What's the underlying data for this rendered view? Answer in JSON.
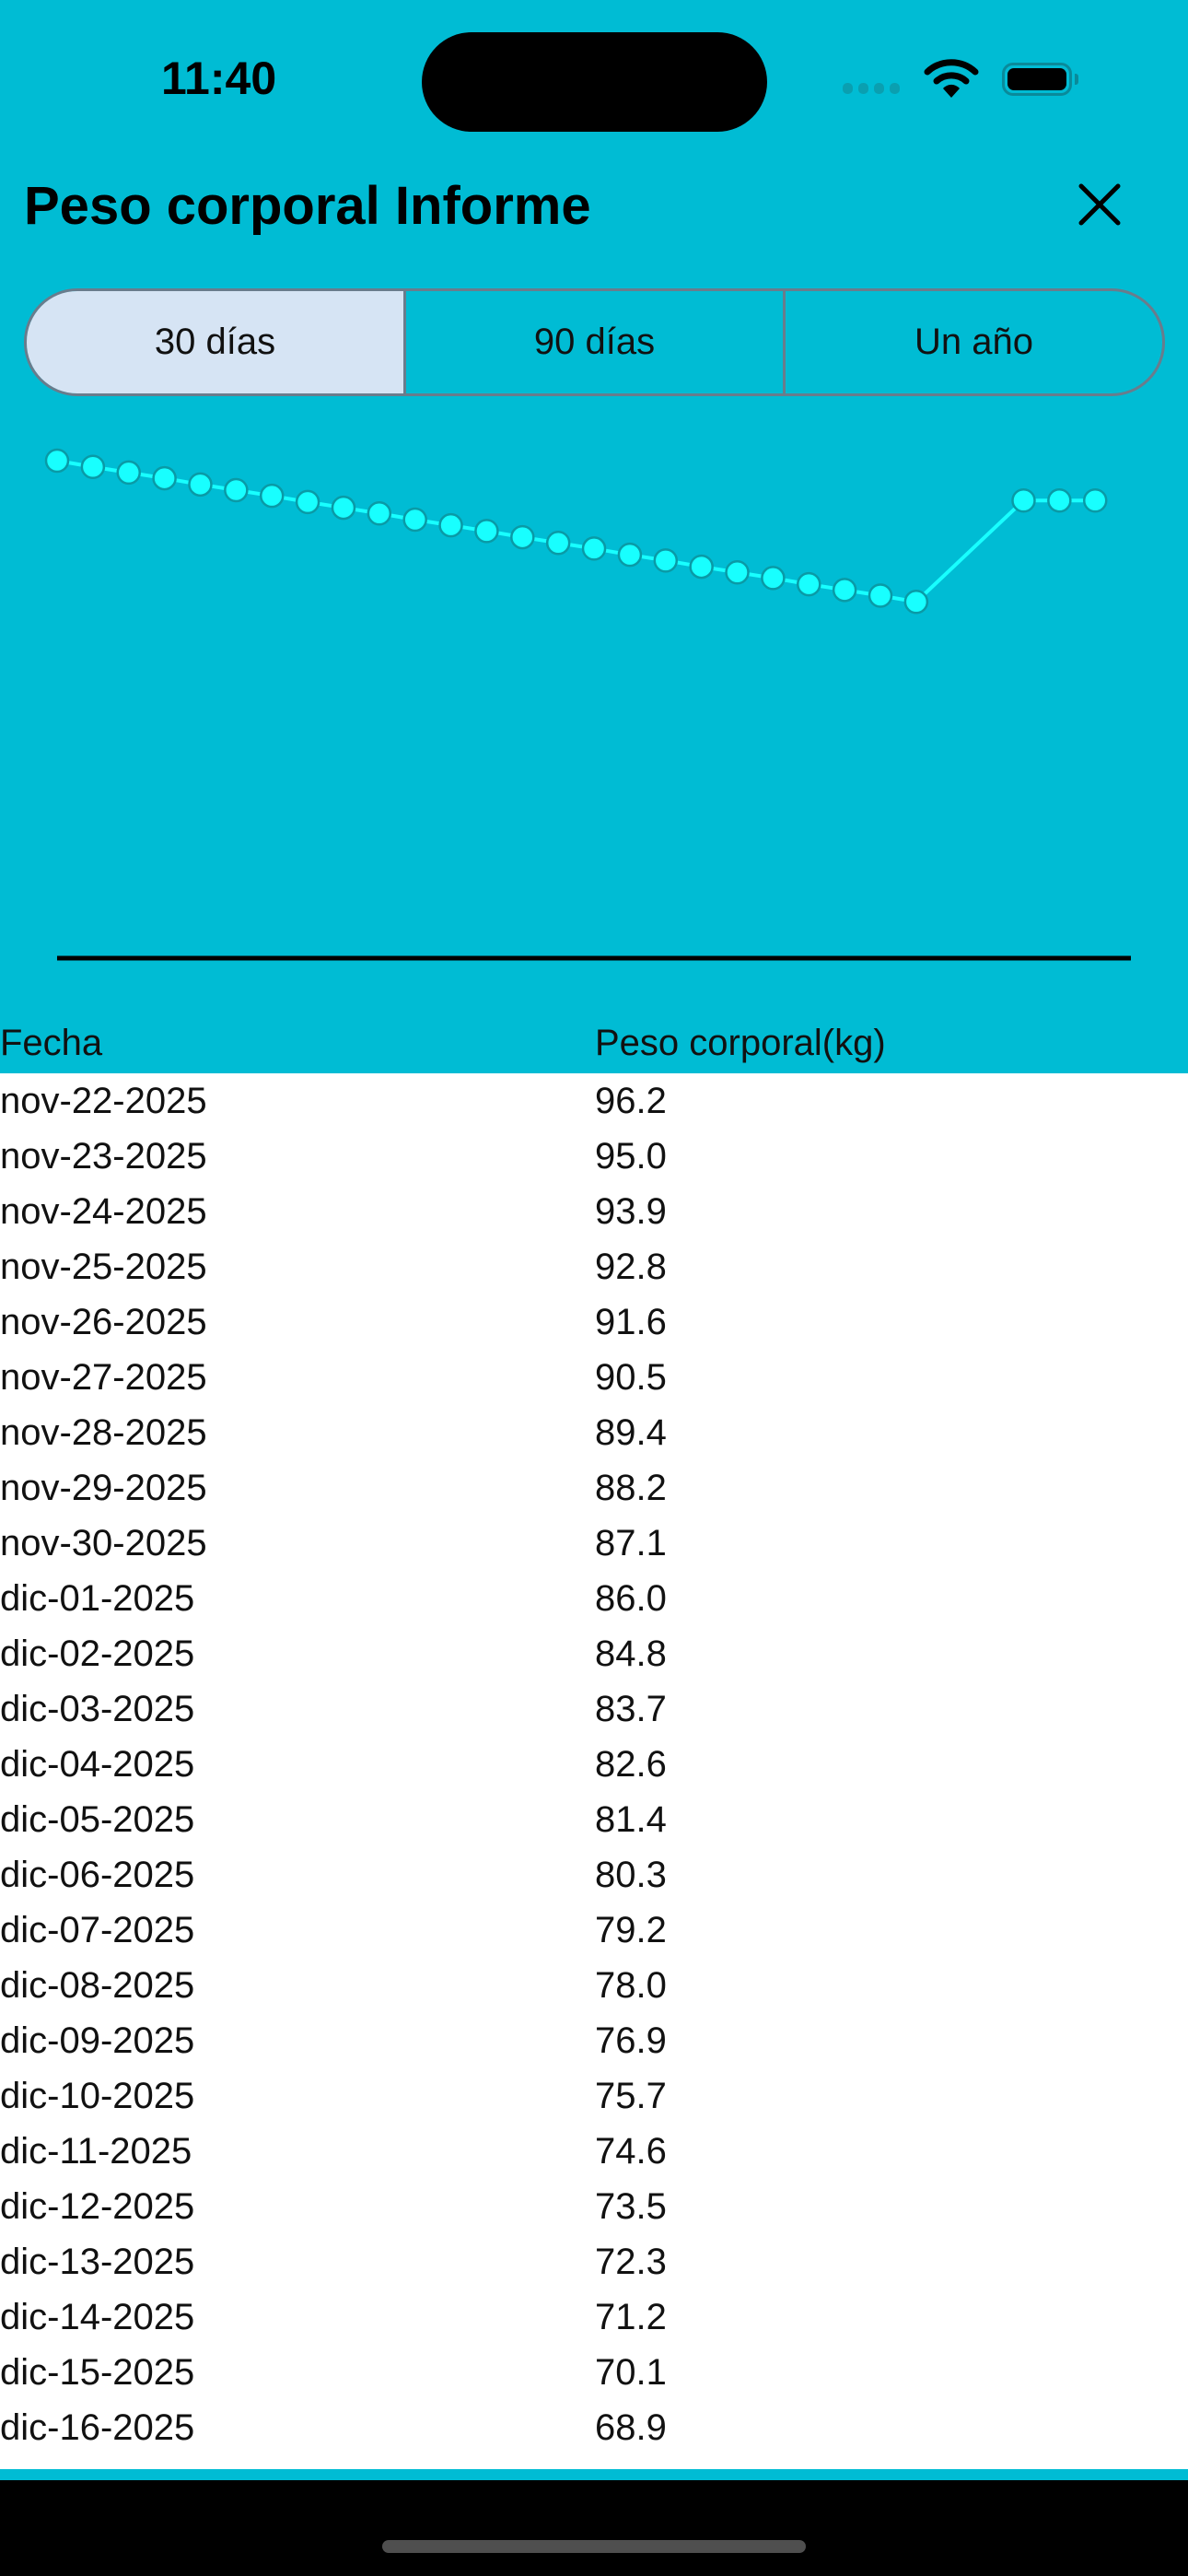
{
  "status_bar": {
    "time": "11:40"
  },
  "header": {
    "title": "Peso corporal Informe",
    "close_icon": "close-icon"
  },
  "range_tabs": [
    {
      "label": "30 días",
      "selected": true
    },
    {
      "label": "90 días",
      "selected": false
    },
    {
      "label": "Un año",
      "selected": false
    }
  ],
  "colors": {
    "background": "#00bcd4",
    "line": "#18ffff",
    "point_fill": "#18ffff",
    "point_stroke": "#0a9aa6",
    "selected_tab": "#d6e4f4"
  },
  "chart_data": {
    "type": "line",
    "ylim": [
      0,
      96.2
    ],
    "grid": false,
    "series": [
      {
        "values": [
          96.2,
          95.0,
          93.9,
          92.8,
          91.6,
          90.5,
          89.4,
          88.2,
          87.1,
          86.0,
          84.8,
          83.7,
          82.6,
          81.4,
          80.3,
          79.2,
          78.0,
          76.9,
          75.7,
          74.6,
          73.5,
          72.3,
          71.2,
          70.1,
          68.9,
          null,
          null,
          88.5,
          88.5,
          88.5
        ]
      }
    ]
  },
  "table": {
    "headers": [
      "Fecha",
      "Peso corporal(kg)"
    ],
    "rows": [
      [
        "nov-22-2025",
        "96.2"
      ],
      [
        "nov-23-2025",
        "95.0"
      ],
      [
        "nov-24-2025",
        "93.9"
      ],
      [
        "nov-25-2025",
        "92.8"
      ],
      [
        "nov-26-2025",
        "91.6"
      ],
      [
        "nov-27-2025",
        "90.5"
      ],
      [
        "nov-28-2025",
        "89.4"
      ],
      [
        "nov-29-2025",
        "88.2"
      ],
      [
        "nov-30-2025",
        "87.1"
      ],
      [
        "dic-01-2025",
        "86.0"
      ],
      [
        "dic-02-2025",
        "84.8"
      ],
      [
        "dic-03-2025",
        "83.7"
      ],
      [
        "dic-04-2025",
        "82.6"
      ],
      [
        "dic-05-2025",
        "81.4"
      ],
      [
        "dic-06-2025",
        "80.3"
      ],
      [
        "dic-07-2025",
        "79.2"
      ],
      [
        "dic-08-2025",
        "78.0"
      ],
      [
        "dic-09-2025",
        "76.9"
      ],
      [
        "dic-10-2025",
        "75.7"
      ],
      [
        "dic-11-2025",
        "74.6"
      ],
      [
        "dic-12-2025",
        "73.5"
      ],
      [
        "dic-13-2025",
        "72.3"
      ],
      [
        "dic-14-2025",
        "71.2"
      ],
      [
        "dic-15-2025",
        "70.1"
      ],
      [
        "dic-16-2025",
        "68.9"
      ]
    ]
  }
}
